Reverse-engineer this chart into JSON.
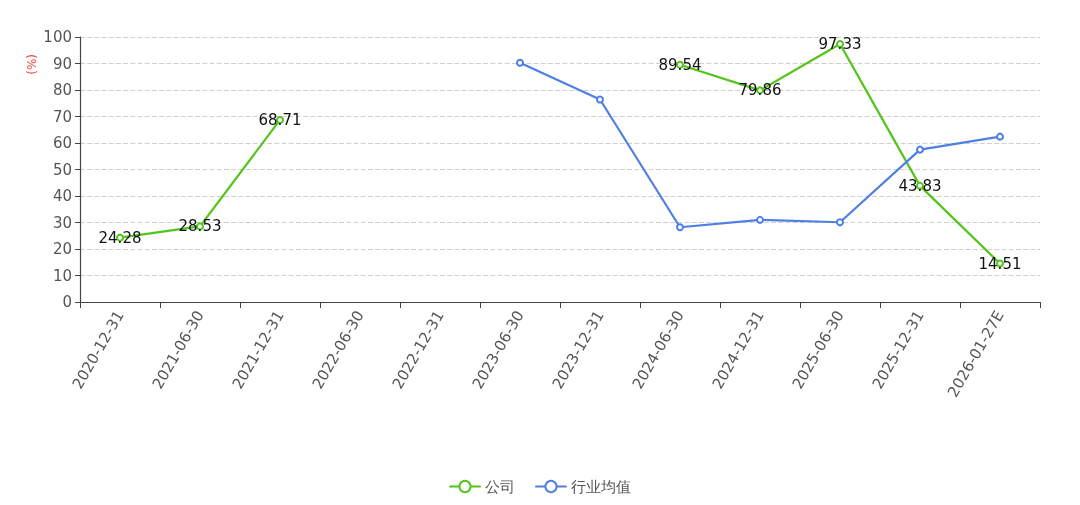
{
  "chart_data": {
    "type": "line",
    "ylabel": "(%)",
    "categories": [
      "2020-12-31",
      "2021-06-30",
      "2021-12-31",
      "2022-06-30",
      "2022-12-31",
      "2023-06-30",
      "2023-12-31",
      "2024-06-30",
      "2024-12-31",
      "2025-06-30",
      "2025-12-31",
      "2026-01-27E"
    ],
    "series": [
      {
        "name": "公司",
        "color": "#52c41a",
        "values": [
          24.28,
          28.53,
          68.71,
          null,
          null,
          null,
          null,
          89.54,
          79.86,
          97.33,
          43.83,
          14.51
        ],
        "value_labels": [
          "24.28",
          "28.53",
          "68.71",
          null,
          null,
          null,
          null,
          "89.54",
          "79.86",
          "97.33",
          "43.83",
          "14.51"
        ]
      },
      {
        "name": "行业均值",
        "color": "#4f7fe3",
        "values": [
          null,
          null,
          null,
          null,
          null,
          90.3,
          76.4,
          28.2,
          31.0,
          30.1,
          57.5,
          62.4
        ]
      }
    ],
    "ylim": [
      0,
      100
    ],
    "yticks": [
      0,
      10,
      20,
      30,
      40,
      50,
      60,
      70,
      80,
      90,
      100
    ],
    "grid": "y",
    "legend": "bottom",
    "marker": "circle",
    "line_style": "solid"
  }
}
